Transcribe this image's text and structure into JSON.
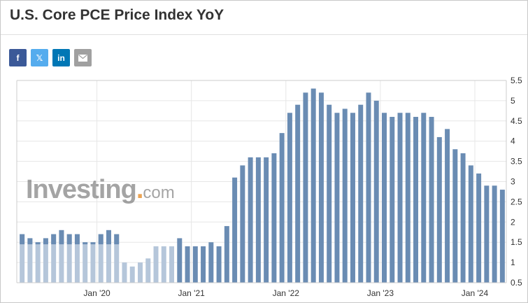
{
  "header": {
    "title": "U.S. Core PCE Price Index YoY"
  },
  "share": [
    {
      "name": "facebook-icon",
      "label": "f",
      "color": "#3b5998"
    },
    {
      "name": "x-twitter-icon",
      "label": "𝕏",
      "color": "#55acee"
    },
    {
      "name": "linkedin-icon",
      "label": "in",
      "color": "#0077b5"
    },
    {
      "name": "email-icon",
      "label": "",
      "color": "#a0a0a0"
    }
  ],
  "watermark": {
    "brand": "Investing",
    "suffix": "com"
  },
  "chart_data": {
    "type": "bar",
    "title": "U.S. Core PCE Price Index YoY",
    "xlabel": "",
    "ylabel": "",
    "ylim": [
      0.5,
      5.5
    ],
    "yticks": [
      "5.5",
      "5",
      "4.5",
      "4",
      "3.5",
      "3",
      "2.5",
      "2",
      "1.5",
      "1",
      "0.5"
    ],
    "xtick_labels": [
      {
        "label": "Jan '20",
        "index": 10
      },
      {
        "label": "Jan '21",
        "index": 22
      },
      {
        "label": "Jan '22",
        "index": 34
      },
      {
        "label": "Jan '23",
        "index": 46
      },
      {
        "label": "Jan '24",
        "index": 58
      }
    ],
    "colors": {
      "bar": "#6a8cb3",
      "bar_faded": "#b5c6da",
      "grid": "#e6e6e6",
      "axis": "#cccccc"
    },
    "faded_count": 20,
    "values": [
      1.7,
      1.6,
      1.5,
      1.6,
      1.7,
      1.8,
      1.7,
      1.7,
      1.5,
      1.5,
      1.7,
      1.8,
      1.7,
      1.0,
      0.9,
      1.0,
      1.1,
      1.4,
      1.4,
      1.4,
      1.6,
      1.4,
      1.4,
      1.4,
      1.5,
      1.4,
      1.9,
      3.1,
      3.4,
      3.6,
      3.6,
      3.6,
      3.7,
      4.2,
      4.7,
      4.9,
      5.2,
      5.3,
      5.2,
      4.9,
      4.7,
      4.8,
      4.7,
      4.9,
      5.2,
      5.0,
      4.7,
      4.6,
      4.7,
      4.7,
      4.6,
      4.7,
      4.6,
      4.1,
      4.3,
      3.8,
      3.7,
      3.4,
      3.2,
      2.9,
      2.9,
      2.8
    ]
  }
}
